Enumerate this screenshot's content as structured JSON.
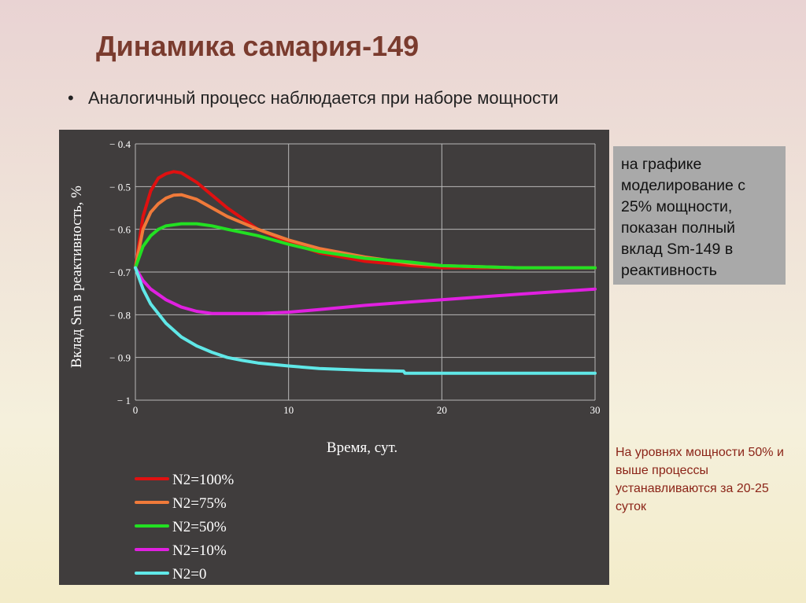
{
  "slide": {
    "title": "Динамика самария-149",
    "bullet": "Аналогичный процесс наблюдается при наборе мощности",
    "note_box": "на графике моделирование с 25% мощности, показан полный вклад Sm-149 в реактивность",
    "note_red": "На уровнях мощности 50% и выше процессы устанавливаются за 20-25 суток"
  },
  "colors": {
    "panel_bg": "#403d3d",
    "title": "#7a3b2e",
    "note_red": "#8b2418"
  },
  "chart_data": {
    "type": "line",
    "title": "",
    "xlabel": "Время, сут.",
    "ylabel": "Вклад Sm в реактивность, %",
    "xlim": [
      0,
      30
    ],
    "ylim": [
      -1,
      -0.4
    ],
    "x_ticks": [
      0,
      10,
      20,
      30
    ],
    "y_ticks": [
      -0.4,
      -0.5,
      -0.6,
      -0.7,
      -0.8,
      -0.9,
      -1
    ],
    "x_tick_labels": [
      "0",
      "10",
      "20",
      "30"
    ],
    "y_tick_labels": [
      "− 0.4",
      "− 0.5",
      "− 0.6",
      "− 0.7",
      "− 0.8",
      "− 0.9",
      "− 1"
    ],
    "grid": true,
    "legend_position": "bottom-left",
    "series": [
      {
        "name": "N2=100%",
        "color": "#e01010",
        "x": [
          0,
          0.5,
          1,
          1.5,
          2,
          2.5,
          3,
          4,
          5,
          6,
          8,
          10,
          12,
          15,
          18,
          20,
          25,
          30
        ],
        "y": [
          -0.69,
          -0.57,
          -0.51,
          -0.48,
          -0.47,
          -0.465,
          -0.468,
          -0.49,
          -0.52,
          -0.55,
          -0.6,
          -0.63,
          -0.655,
          -0.675,
          -0.685,
          -0.69,
          -0.69,
          -0.69
        ]
      },
      {
        "name": "N2=75%",
        "color": "#f07a3a",
        "x": [
          0,
          0.5,
          1,
          1.5,
          2,
          2.5,
          3,
          4,
          5,
          6,
          8,
          10,
          12,
          15,
          18,
          20,
          25,
          30
        ],
        "y": [
          -0.69,
          -0.6,
          -0.56,
          -0.54,
          -0.527,
          -0.52,
          -0.519,
          -0.53,
          -0.55,
          -0.57,
          -0.6,
          -0.625,
          -0.645,
          -0.665,
          -0.68,
          -0.685,
          -0.69,
          -0.69
        ]
      },
      {
        "name": "N2=50%",
        "color": "#22e022",
        "x": [
          0,
          0.5,
          1,
          1.5,
          2,
          3,
          4,
          5,
          6,
          8,
          10,
          12,
          15,
          18,
          20,
          25,
          30
        ],
        "y": [
          -0.69,
          -0.64,
          -0.615,
          -0.6,
          -0.592,
          -0.587,
          -0.587,
          -0.592,
          -0.6,
          -0.615,
          -0.635,
          -0.652,
          -0.668,
          -0.677,
          -0.685,
          -0.69,
          -0.69
        ]
      },
      {
        "name": "N2=10%",
        "color": "#e020e0",
        "x": [
          0,
          0.5,
          1,
          2,
          3,
          4,
          5,
          6,
          8,
          10,
          12,
          15,
          18,
          20,
          25,
          30
        ],
        "y": [
          -0.69,
          -0.72,
          -0.74,
          -0.765,
          -0.782,
          -0.792,
          -0.797,
          -0.797,
          -0.797,
          -0.794,
          -0.788,
          -0.778,
          -0.77,
          -0.765,
          -0.752,
          -0.74
        ]
      },
      {
        "name": "N2=0",
        "color": "#60e8e8",
        "x": [
          0,
          0.5,
          1,
          2,
          3,
          4,
          5,
          6,
          7,
          8,
          10,
          12,
          15,
          17.5,
          17.6,
          20,
          25,
          30
        ],
        "y": [
          -0.69,
          -0.74,
          -0.775,
          -0.82,
          -0.852,
          -0.873,
          -0.888,
          -0.9,
          -0.907,
          -0.913,
          -0.92,
          -0.926,
          -0.93,
          -0.932,
          -0.937,
          -0.937,
          -0.937,
          -0.937
        ]
      }
    ]
  }
}
